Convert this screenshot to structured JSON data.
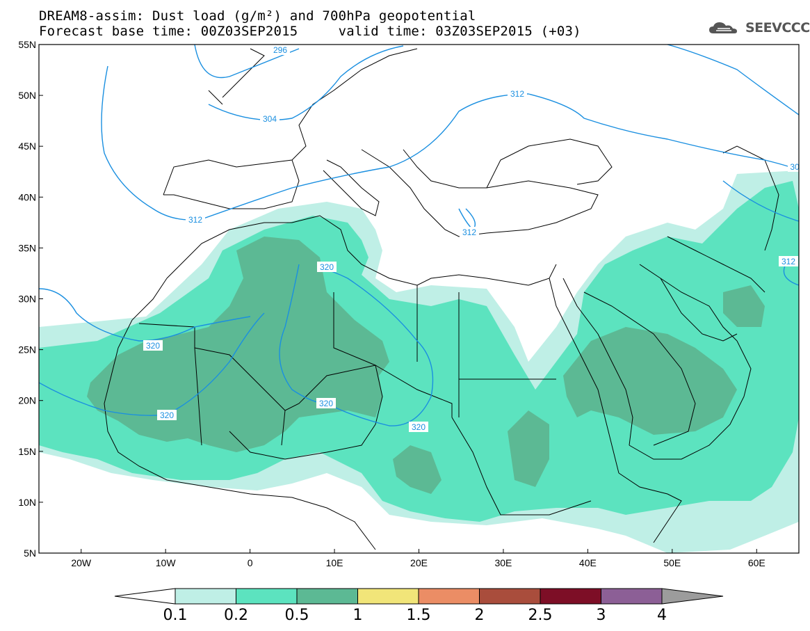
{
  "title": {
    "line1": "DREAM8-assim: Dust load (g/m²) and 700hPa geopotential",
    "line2": "Forecast base time: 00Z03SEP2015     valid time: 03Z03SEP2015 (+03)"
  },
  "logo": {
    "text": "SEEVCCC",
    "icon": "cloud-icon"
  },
  "map_data": {
    "type": "map",
    "lat_labels": [
      "55N",
      "50N",
      "45N",
      "40N",
      "35N",
      "30N",
      "25N",
      "20N",
      "15N",
      "10N",
      "5N"
    ],
    "lon_labels": [
      "20W",
      "10W",
      "0",
      "10E",
      "20E",
      "30E",
      "40E",
      "50E",
      "60E"
    ],
    "lat_range": [
      5,
      55
    ],
    "lon_range": [
      -25,
      65
    ],
    "contour_labels": [
      "296",
      "304",
      "312",
      "312",
      "312",
      "320",
      "320",
      "320",
      "320",
      "320",
      "312",
      "30"
    ],
    "colors": {
      "contour": "#1a8fe0",
      "coast": "#000000"
    }
  },
  "colorbar": {
    "labels": [
      "0.1",
      "0.2",
      "0.5",
      "1",
      "1.5",
      "2",
      "2.5",
      "3",
      "4"
    ],
    "colors": [
      "#ffffff",
      "#bfefe6",
      "#5ce3bf",
      "#5cb994",
      "#f1e579",
      "#eb8d65",
      "#a94d3c",
      "#7d0e26",
      "#8c5f96",
      "#9c9c9c"
    ]
  }
}
